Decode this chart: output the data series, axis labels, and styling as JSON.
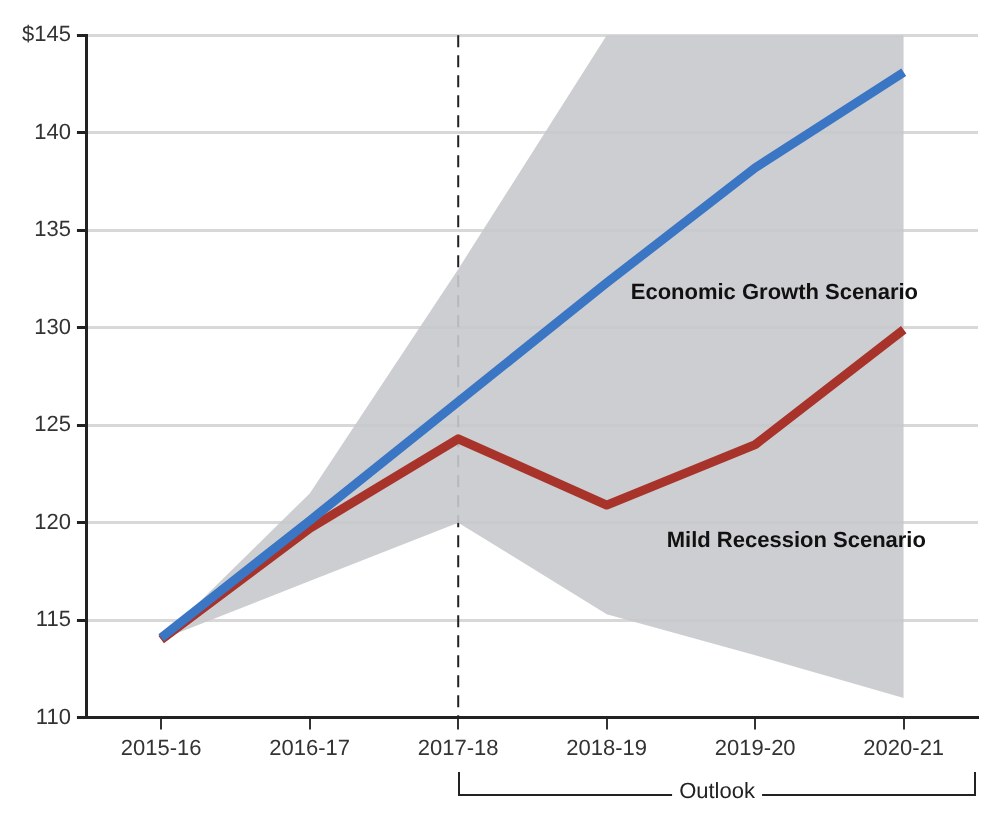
{
  "chart_data": {
    "type": "line",
    "categories": [
      "2015-16",
      "2016-17",
      "2017-18",
      "2018-19",
      "2019-20",
      "2020-21"
    ],
    "series": [
      {
        "name": "Economic Growth Scenario",
        "color": "#3a76c4",
        "values": [
          114.1,
          120.1,
          126.2,
          132.3,
          138.2,
          143.1
        ],
        "lower": [
          114,
          117,
          120,
          115.3,
          113.2,
          111
        ],
        "upper": [
          114,
          121.5,
          133,
          145,
          145,
          145
        ]
      },
      {
        "name": "Mild Recession Scenario",
        "color": "#a8332a",
        "values": [
          114,
          119.7,
          124.3,
          120.9,
          124,
          129.9
        ]
      }
    ],
    "ylim": [
      110,
      145
    ],
    "yticks": [
      110,
      115,
      120,
      125,
      130,
      135,
      140,
      {
        "value": 145,
        "label": "$145"
      }
    ],
    "grid": "y",
    "legend": false,
    "marker": "none",
    "line_style": "solid",
    "ref_lines": [
      {
        "axis": "x",
        "value": "2017-18",
        "color": "#222222",
        "line_style": "dashed"
      }
    ],
    "annotations": [
      "Outlook"
    ]
  }
}
